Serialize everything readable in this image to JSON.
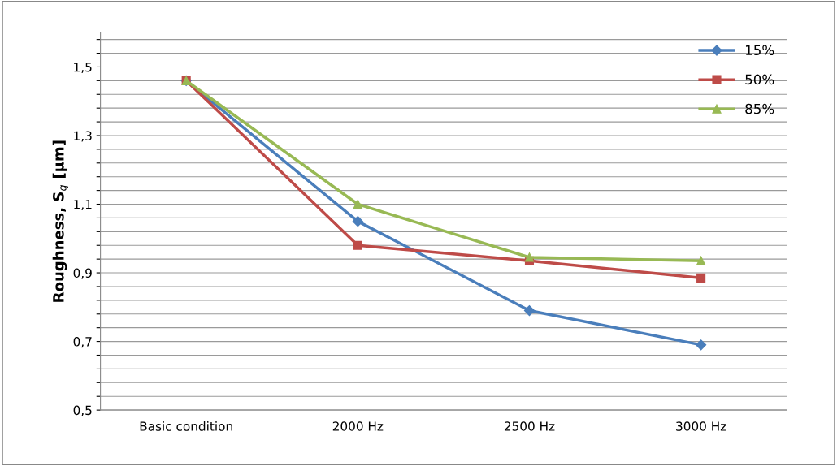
{
  "chart_data": {
    "type": "line",
    "ylabel": "Roughness, S$_{q}$ [µm]",
    "categories": [
      "Basic condition",
      "2000 Hz",
      "2500 Hz",
      "3000 Hz"
    ],
    "series": [
      {
        "name": "15%",
        "color": "#4a7ebb",
        "marker": "diamond",
        "values": [
          1.46,
          1.05,
          0.79,
          0.69
        ]
      },
      {
        "name": "50%",
        "color": "#be4b48",
        "marker": "square",
        "values": [
          1.46,
          0.98,
          0.935,
          0.885
        ]
      },
      {
        "name": "85%",
        "color": "#98b954",
        "marker": "triangle",
        "values": [
          1.46,
          1.1,
          0.945,
          0.935
        ]
      }
    ],
    "ylim": [
      0.5,
      1.6
    ],
    "yticks": [
      {
        "value": 0.5,
        "label": "0,5"
      },
      {
        "value": 0.54,
        "label": null
      },
      {
        "value": 0.58,
        "label": null
      },
      {
        "value": 0.62,
        "label": null
      },
      {
        "value": 0.66,
        "label": null
      },
      {
        "value": 0.7,
        "label": "0,7"
      },
      {
        "value": 0.74,
        "label": null
      },
      {
        "value": 0.78,
        "label": null
      },
      {
        "value": 0.82,
        "label": null
      },
      {
        "value": 0.86,
        "label": null
      },
      {
        "value": 0.9,
        "label": "0,9"
      },
      {
        "value": 0.94,
        "label": null
      },
      {
        "value": 0.98,
        "label": null
      },
      {
        "value": 1.02,
        "label": null
      },
      {
        "value": 1.06,
        "label": null
      },
      {
        "value": 1.1,
        "label": "1,1"
      },
      {
        "value": 1.14,
        "label": null
      },
      {
        "value": 1.18,
        "label": null
      },
      {
        "value": 1.22,
        "label": null
      },
      {
        "value": 1.26,
        "label": null
      },
      {
        "value": 1.3,
        "label": "1,3"
      },
      {
        "value": 1.34,
        "label": null
      },
      {
        "value": 1.38,
        "label": null
      },
      {
        "value": 1.42,
        "label": null
      },
      {
        "value": 1.46,
        "label": null
      },
      {
        "value": 1.5,
        "label": "1,5"
      },
      {
        "value": 1.54,
        "label": null
      },
      {
        "value": 1.58,
        "label": null
      }
    ],
    "grid": "y",
    "legend": "top right",
    "line_style": "solid"
  }
}
